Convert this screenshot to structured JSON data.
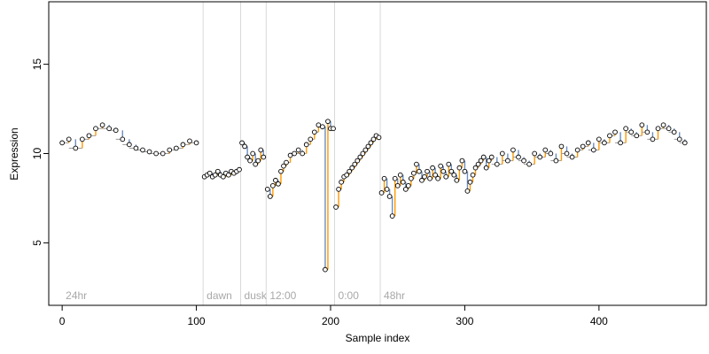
{
  "chart_data": {
    "type": "scatter",
    "title": "",
    "xlabel": "Sample index",
    "ylabel": "Expression",
    "xlim": [
      -10,
      480
    ],
    "ylim": [
      1.5,
      18.5
    ],
    "xticks": [
      0,
      100,
      200,
      300,
      400
    ],
    "yticks": [
      5,
      10,
      15
    ],
    "grid": false,
    "legend": "none",
    "colors": {
      "point_fill": "#ffffff",
      "point_stroke": "#000000",
      "segment_up": "#ff9900",
      "segment_down": "#6c8ebf",
      "baseline": "#999999",
      "phase_line": "#d9d9d9",
      "phase_label": "#a8a8a8"
    },
    "phases": [
      {
        "x": 0,
        "label": "24hr"
      },
      {
        "x": 105,
        "label": "dawn"
      },
      {
        "x": 133,
        "label": "dusk"
      },
      {
        "x": 152,
        "label": "12:00"
      },
      {
        "x": 203,
        "label": "0:00"
      },
      {
        "x": 237,
        "label": "48hr"
      }
    ],
    "series": [
      {
        "x": [
          0,
          5,
          10,
          15,
          20,
          25,
          30,
          35,
          40,
          45,
          50,
          55,
          60,
          65,
          70,
          75,
          80,
          85,
          90,
          95,
          100
        ],
        "y": [
          10.6,
          10.8,
          10.3,
          10.8,
          11.0,
          11.4,
          11.6,
          11.4,
          11.3,
          10.8,
          10.5,
          10.3,
          10.2,
          10.1,
          10.0,
          10.0,
          10.2,
          10.3,
          10.5,
          10.7,
          10.6
        ]
      },
      {
        "x": [
          106,
          108,
          110,
          112,
          114,
          116,
          118,
          120,
          122,
          124,
          126,
          128,
          130,
          132
        ],
        "y": [
          8.7,
          8.8,
          8.9,
          8.7,
          8.8,
          9.0,
          8.8,
          8.7,
          8.9,
          8.8,
          9.0,
          8.9,
          9.0,
          9.1
        ]
      },
      {
        "x": [
          134,
          136,
          138,
          140,
          142,
          144,
          146,
          148,
          150
        ],
        "y": [
          10.6,
          10.4,
          9.8,
          9.6,
          10.0,
          9.4,
          9.6,
          10.2,
          9.8
        ]
      },
      {
        "x": [
          153,
          155,
          157,
          159,
          161,
          163,
          165,
          167,
          170,
          173,
          176,
          179,
          182,
          185,
          188,
          191,
          194,
          196,
          198,
          200,
          202
        ],
        "y": [
          8.0,
          7.6,
          8.2,
          8.5,
          8.3,
          9.0,
          9.3,
          9.5,
          9.9,
          10.0,
          10.2,
          10.0,
          10.5,
          10.8,
          11.2,
          11.6,
          11.5,
          3.5,
          11.8,
          11.4,
          11.4
        ]
      },
      {
        "x": [
          204,
          206,
          208,
          210,
          212,
          214,
          216,
          218,
          220,
          222,
          224,
          226,
          228,
          230,
          232,
          234,
          236
        ],
        "y": [
          7.0,
          8.0,
          8.4,
          8.7,
          8.8,
          9.0,
          9.2,
          9.4,
          9.6,
          9.8,
          10.0,
          10.2,
          10.4,
          10.6,
          10.8,
          11.0,
          10.9
        ]
      },
      {
        "x": [
          238,
          240,
          242,
          244,
          246,
          248,
          250,
          252,
          254,
          256,
          258,
          260,
          262,
          264,
          266,
          268,
          270,
          272,
          274,
          276,
          278,
          280,
          282,
          284,
          286,
          288,
          290,
          292,
          294,
          296,
          298,
          300,
          302,
          304,
          306,
          308,
          310,
          312,
          314,
          316,
          318,
          320,
          324,
          328,
          332,
          336,
          340,
          344,
          348,
          352,
          356,
          360,
          364,
          368,
          372,
          376,
          380,
          384,
          388,
          392,
          396,
          400,
          404,
          408,
          412,
          416,
          420,
          424,
          428,
          432,
          436,
          440,
          444,
          448,
          452,
          456,
          460,
          464
        ],
        "y": [
          7.8,
          8.6,
          8.0,
          7.6,
          6.5,
          8.6,
          8.2,
          8.8,
          8.4,
          8.0,
          8.2,
          8.6,
          8.9,
          9.4,
          9.0,
          8.5,
          8.7,
          9.0,
          8.6,
          9.2,
          8.8,
          8.6,
          9.3,
          9.0,
          8.7,
          9.4,
          9.0,
          8.8,
          8.5,
          9.2,
          9.6,
          9.0,
          7.9,
          8.4,
          8.8,
          9.2,
          9.4,
          9.6,
          9.8,
          9.2,
          9.6,
          9.8,
          9.4,
          10.0,
          9.6,
          10.2,
          9.8,
          9.6,
          9.4,
          10.0,
          9.8,
          10.2,
          10.0,
          9.6,
          10.4,
          10.0,
          9.8,
          10.2,
          10.4,
          10.6,
          10.2,
          10.8,
          10.6,
          11.0,
          11.2,
          10.6,
          11.4,
          11.2,
          11.0,
          11.6,
          11.2,
          10.8,
          11.4,
          11.6,
          11.4,
          11.2,
          10.8,
          10.6
        ]
      }
    ]
  }
}
